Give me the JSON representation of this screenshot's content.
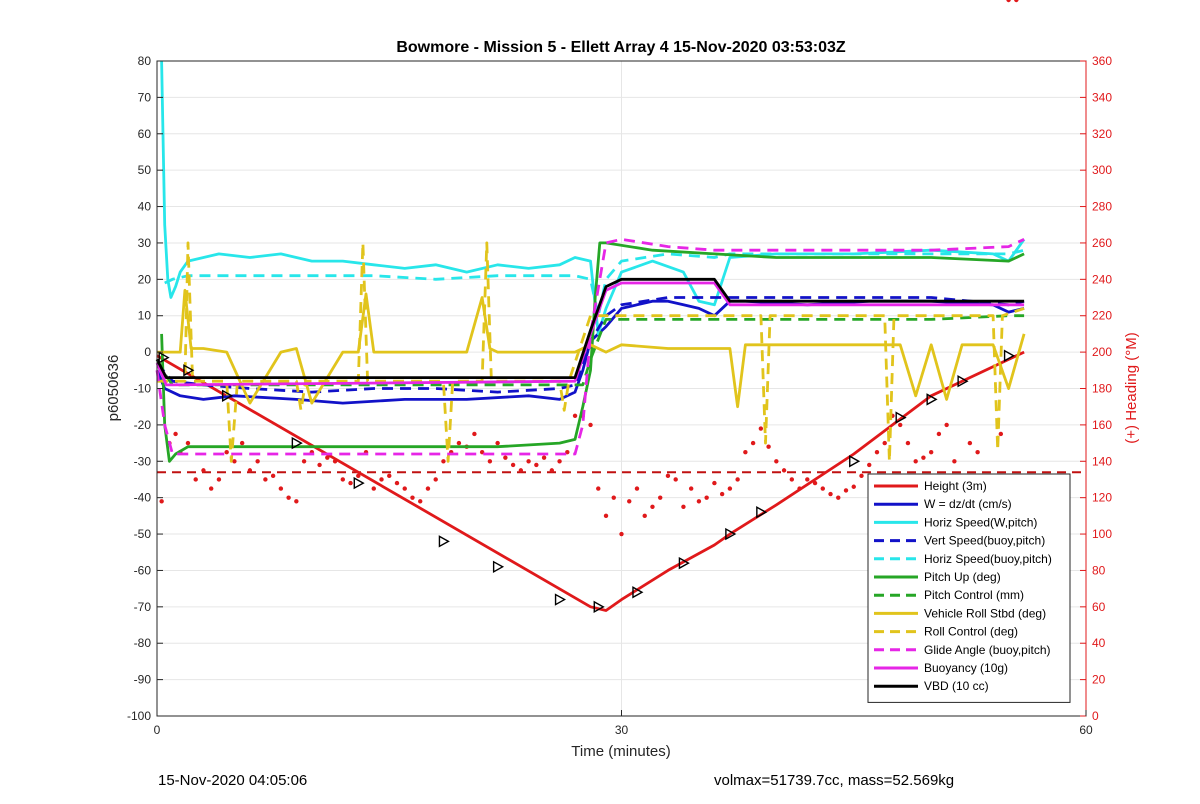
{
  "chart_data": {
    "type": "line",
    "title": "Bowmore - Mission 5 - Ellett Array 4 15-Nov-2020 03:53:03Z",
    "xlabel": "Time (minutes)",
    "ylabel": "p6050636",
    "y2label": "(+) Heading (°M)",
    "xlim": [
      0,
      60
    ],
    "ylim": [
      -100,
      80
    ],
    "y2lim": [
      0,
      360
    ],
    "xticks": [
      0,
      30,
      60
    ],
    "yticks": [
      -100,
      -90,
      -80,
      -70,
      -60,
      -50,
      -40,
      -30,
      -20,
      -10,
      0,
      10,
      20,
      30,
      40,
      50,
      60,
      70,
      80
    ],
    "y2ticks": [
      0,
      20,
      40,
      60,
      80,
      100,
      120,
      140,
      160,
      180,
      200,
      220,
      240,
      260,
      280,
      300,
      320,
      340,
      360
    ],
    "grid": true,
    "legend_position": "lower-right",
    "colors": {
      "heading_axis": "#e0191b",
      "height": "#e0191b",
      "w": "#1212c8",
      "horiz": "#28e6ea",
      "pitch": "#26a626",
      "roll": "#e1c41c",
      "glide": "#e626e6",
      "vbd": "#000000"
    },
    "series": [
      {
        "name": "Height (3m)",
        "color": "#e0191b",
        "style": "solid",
        "x": [
          0,
          28,
          29,
          30,
          33,
          36,
          37,
          40,
          45,
          50,
          56
        ],
        "y": [
          -1,
          -70,
          -71,
          -68,
          -60,
          -53,
          -50,
          -42,
          -28,
          -12,
          0
        ]
      },
      {
        "name": "W = dz/dt (cm/s)",
        "color": "#1212c8",
        "style": "solid",
        "x": [
          0,
          0.5,
          1.5,
          3,
          5,
          9,
          12,
          16,
          20,
          24,
          26,
          27,
          27.5,
          28,
          29,
          30,
          31,
          32,
          33,
          34,
          35,
          36,
          37,
          38,
          42,
          46,
          50,
          54,
          55,
          56
        ],
        "y": [
          -5,
          -10,
          -12,
          -13,
          -12,
          -13,
          -14,
          -13,
          -13,
          -12,
          -13,
          -11,
          -5,
          3,
          7,
          12,
          13,
          14,
          14,
          13,
          12,
          10,
          14,
          14,
          13,
          14,
          14,
          13,
          11,
          12
        ]
      },
      {
        "name": "Horiz Speed(W,pitch)",
        "color": "#28e6ea",
        "style": "solid",
        "x": [
          0.3,
          0.5,
          0.7,
          0.9,
          1.2,
          1.5,
          2,
          4,
          6,
          8,
          10,
          12,
          14,
          16,
          18,
          20,
          22,
          24,
          26,
          27,
          28,
          28.5,
          29,
          30,
          32,
          34,
          35,
          36,
          37,
          40,
          45,
          50,
          54,
          55,
          56
        ],
        "y": [
          80,
          35,
          20,
          15,
          18,
          22,
          25,
          27,
          26,
          27,
          25,
          25,
          24,
          23,
          24,
          22,
          24,
          23,
          24,
          26,
          25,
          5,
          12,
          22,
          25,
          22,
          14,
          13,
          26,
          27,
          27,
          28,
          27,
          25,
          31
        ]
      },
      {
        "name": "Vert Speed(buoy,pitch)",
        "color": "#1212c8",
        "style": "dashed",
        "x": [
          0,
          1,
          3,
          6,
          10,
          14,
          18,
          22,
          26,
          27,
          28,
          29,
          30,
          33,
          36,
          37,
          40,
          45,
          50,
          55,
          56
        ],
        "y": [
          -3,
          -8,
          -9,
          -10,
          -11,
          -10,
          -10,
          -11,
          -10,
          -9,
          3,
          10,
          13,
          15,
          15,
          15,
          15,
          15,
          15,
          13,
          14
        ]
      },
      {
        "name": "Horiz Speed(buoy,pitch)",
        "color": "#28e6ea",
        "style": "dashed",
        "x": [
          0.5,
          1,
          2,
          6,
          10,
          14,
          18,
          22,
          26,
          27,
          28,
          28.5,
          29,
          30,
          33,
          36,
          37,
          40,
          45,
          50,
          54,
          55,
          56
        ],
        "y": [
          19,
          20,
          21,
          21,
          21,
          21,
          20,
          21,
          21,
          21,
          20,
          10,
          20,
          25,
          27,
          26,
          27,
          27,
          27,
          27,
          27,
          27,
          28
        ]
      },
      {
        "name": "Pitch Up (deg)",
        "color": "#26a626",
        "style": "solid",
        "x": [
          0.3,
          0.5,
          0.8,
          1.2,
          2,
          6,
          10,
          14,
          18,
          22,
          26,
          27,
          27.5,
          28,
          28.3,
          28.6,
          29,
          32,
          36,
          40,
          45,
          50,
          55,
          56
        ],
        "y": [
          5,
          -20,
          -30,
          -28,
          -26,
          -26,
          -26,
          -26,
          -26,
          -26,
          -25,
          -24,
          -15,
          -5,
          15,
          30,
          30,
          28,
          27,
          26,
          26,
          26,
          25,
          27
        ]
      },
      {
        "name": "Pitch Control (mm)",
        "color": "#26a626",
        "style": "dashed",
        "x": [
          0,
          0.5,
          1,
          4,
          10,
          16,
          22,
          26,
          27.5,
          28,
          29,
          32,
          35,
          37,
          38,
          40,
          45,
          50,
          55,
          56
        ],
        "y": [
          -2,
          -6,
          -9,
          -9,
          -9,
          -9,
          -9,
          -9,
          -9,
          -2,
          9,
          9,
          9,
          9,
          9,
          9,
          9,
          9,
          10,
          10
        ]
      },
      {
        "name": "Vehicle Roll Stbd (deg)",
        "color": "#e1c41c",
        "style": "solid",
        "x": [
          0,
          1.5,
          1.8,
          2.2,
          3,
          4.5,
          6,
          8,
          9,
          10,
          12,
          13,
          13.5,
          14,
          16,
          20,
          21,
          21.5,
          22,
          23,
          27,
          28,
          29,
          30,
          33,
          36,
          37,
          37.5,
          38,
          40,
          44,
          48,
          49,
          50,
          51,
          52,
          54,
          55,
          56
        ],
        "y": [
          0,
          0,
          17,
          1,
          1,
          0,
          -14,
          0,
          1,
          -14,
          0,
          0,
          16,
          0,
          0,
          0,
          15,
          1,
          0,
          0,
          0,
          2,
          0,
          2,
          1,
          1,
          1,
          -15,
          2,
          2,
          2,
          2,
          -12,
          2,
          -13,
          2,
          2,
          -10,
          5
        ]
      },
      {
        "name": "Roll Control (deg)",
        "color": "#e1c41c",
        "style": "dashed",
        "x": [
          0,
          1.8,
          2,
          2.3,
          4.5,
          4.8,
          5.2,
          9,
          9.3,
          9.6,
          13,
          13.3,
          13.6,
          18.5,
          18.8,
          19.1,
          21,
          21.3,
          21.6,
          26,
          26.3,
          26.6,
          28,
          30,
          36,
          39,
          39.3,
          39.6,
          47,
          47.3,
          47.6,
          54,
          54.3,
          54.6,
          56
        ],
        "y": [
          -8,
          -8,
          30,
          -8,
          -8,
          -30,
          -8,
          -8,
          -16,
          -8,
          -8,
          30,
          -8,
          -8,
          -30,
          -8,
          -8,
          30,
          -8,
          -8,
          -16,
          -8,
          10,
          10,
          10,
          10,
          -25,
          10,
          10,
          -30,
          10,
          10,
          -27,
          10,
          12
        ]
      },
      {
        "name": "Glide Angle (buoy,pitch)",
        "color": "#e626e6",
        "style": "dashed",
        "x": [
          0,
          0.5,
          1,
          3,
          8,
          14,
          20,
          26,
          27,
          27.5,
          28,
          29,
          30,
          33,
          36,
          40,
          45,
          50,
          55,
          56
        ],
        "y": [
          -5,
          -20,
          -28,
          -28,
          -28,
          -28,
          -28,
          -28,
          -28,
          -20,
          5,
          30,
          31,
          29,
          28,
          28,
          28,
          28,
          29,
          31
        ]
      },
      {
        "name": "Buoyancy (10g)",
        "color": "#e626e6",
        "style": "solid",
        "x": [
          0,
          0.6,
          1,
          27,
          28,
          29,
          30,
          36,
          37,
          56
        ],
        "y": [
          -3,
          -9,
          -9,
          -8,
          5,
          17,
          19,
          19,
          13,
          13
        ]
      },
      {
        "name": "VBD (10 cc)",
        "color": "#000000",
        "style": "solid",
        "x": [
          0,
          0.6,
          1,
          27,
          28,
          29,
          30,
          36,
          37,
          56
        ],
        "y": [
          -2,
          -7,
          -7,
          -7,
          6,
          18,
          20,
          20,
          14,
          14
        ]
      }
    ],
    "heading_level_series": {
      "name": "heading-target",
      "color": "#c01010",
      "style": "dashed",
      "y2": 134
    },
    "heading_points": {
      "x": [
        0.3,
        0.8,
        1.2,
        1.5,
        2,
        2.5,
        3,
        3.5,
        4,
        4.5,
        5,
        5.5,
        6,
        6.5,
        7,
        7.5,
        8,
        8.5,
        9,
        9.5,
        10,
        10.5,
        11,
        11.5,
        12,
        12.5,
        13,
        13.5,
        14,
        14.5,
        15,
        15.5,
        16,
        16.5,
        17,
        17.5,
        18,
        18.5,
        19,
        19.5,
        20,
        20.5,
        21,
        21.5,
        22,
        22.5,
        23,
        23.5,
        24,
        24.5,
        25,
        25.5,
        26,
        26.5,
        27,
        27.5,
        28,
        28.5,
        29,
        29.5,
        30,
        30.5,
        31,
        31.5,
        32,
        32.5,
        33,
        33.5,
        34,
        34.5,
        35,
        35.5,
        36,
        36.5,
        37,
        37.5,
        38,
        38.5,
        39,
        39.5,
        40,
        40.5,
        41,
        41.5,
        42,
        42.5,
        43,
        43.5,
        44,
        44.5,
        45,
        45.5,
        46,
        46.5,
        47,
        47.5,
        48,
        48.5,
        49,
        49.5,
        50,
        50.5,
        51,
        51.5,
        52,
        52.5,
        53,
        53.5,
        54,
        54.5,
        55,
        55.5
      ],
      "y2": [
        118,
        150,
        155,
        145,
        150,
        130,
        135,
        125,
        130,
        145,
        140,
        150,
        135,
        140,
        130,
        132,
        125,
        120,
        118,
        140,
        145,
        138,
        142,
        140,
        130,
        128,
        132,
        145,
        125,
        130,
        132,
        128,
        125,
        120,
        118,
        125,
        130,
        140,
        145,
        150,
        148,
        155,
        145,
        140,
        150,
        142,
        138,
        135,
        140,
        138,
        142,
        135,
        140,
        145,
        165,
        165,
        160,
        125,
        110,
        120,
        100,
        118,
        125,
        110,
        115,
        120,
        132,
        130,
        115,
        125,
        118,
        120,
        128,
        122,
        125,
        130,
        145,
        150,
        158,
        148,
        140,
        135,
        130,
        125,
        130,
        128,
        125,
        122,
        120,
        124,
        126,
        132,
        138,
        145,
        150,
        165,
        160,
        150,
        140,
        142,
        145,
        155,
        160,
        140,
        130,
        150,
        145,
        120,
        115,
        155
      ]
    },
    "marker_points": {
      "x": [
        0.4,
        2,
        4.5,
        9,
        13,
        18.5,
        22,
        26,
        28.5,
        31,
        34,
        37,
        39,
        45,
        48,
        50,
        52,
        55
      ],
      "y": [
        -1.5,
        -5,
        -12,
        -25,
        -36,
        -52,
        -59,
        -68,
        -70,
        -66,
        -58,
        -50,
        -44,
        -30,
        -18,
        -13,
        -8,
        -1
      ]
    }
  },
  "footer": {
    "left": "15-Nov-2020 04:05:06",
    "right": "volmax=51739.7cc, mass=52.569kg"
  }
}
